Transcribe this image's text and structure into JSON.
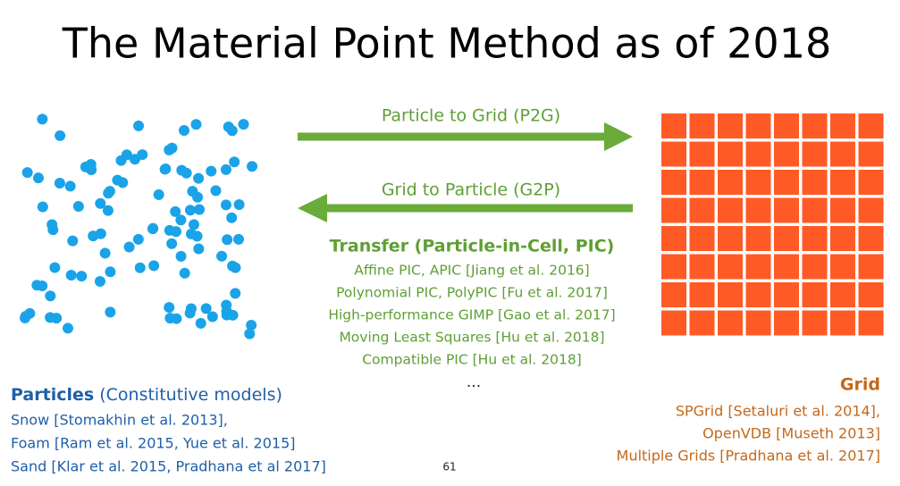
{
  "title": "The Material Point Method as of 2018",
  "arrows": {
    "p2g": "Particle to Grid (P2G)",
    "g2p": "Grid to Particle (G2P)"
  },
  "transfer": {
    "heading": "Transfer (Particle-in-Cell, PIC)",
    "items": [
      "Affine PIC, APIC [Jiang et al. 2016]",
      "Polynomial PIC, PolyPIC [Fu et al. 2017]",
      "High-performance GIMP [Gao et al. 2017]",
      "Moving Least Squares [Hu et al. 2018]",
      "Compatible PIC [Hu et al. 2018]"
    ],
    "more": "..."
  },
  "particles": {
    "heading": "Particles",
    "subheading": "(Constitutive models)",
    "items": [
      "Snow [Stomakhin et al. 2013],",
      "Foam [Ram et al. 2015, Yue et al. 2015]",
      "Sand [Klar et al. 2015, Pradhana et al 2017]"
    ]
  },
  "grid": {
    "heading": "Grid",
    "items": [
      "SPGrid [Setaluri et al. 2014],",
      "OpenVDB [Museth 2013]",
      "Multiple Grids [Pradhana et al. 2017]"
    ]
  },
  "page_number": "61"
}
